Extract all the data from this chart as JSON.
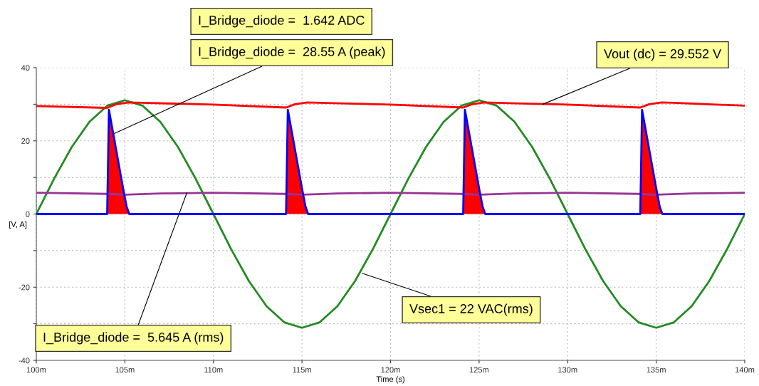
{
  "chart_data": {
    "type": "line",
    "xlabel": "Time (s)",
    "ylabel": "[V, A]",
    "xlim": [
      100,
      140
    ],
    "ylim": [
      -40,
      40
    ],
    "xticks": [
      {
        "value": 100,
        "label": "100m"
      },
      {
        "value": 105,
        "label": "105m"
      },
      {
        "value": 110,
        "label": "110m"
      },
      {
        "value": 115,
        "label": "115m"
      },
      {
        "value": 120,
        "label": "120m"
      },
      {
        "value": 125,
        "label": "125m"
      },
      {
        "value": 130,
        "label": "130m"
      },
      {
        "value": 135,
        "label": "135m"
      },
      {
        "value": 140,
        "label": "140m"
      }
    ],
    "yticks": [
      -40,
      {
        "value": -30,
        "label": null
      },
      -20,
      {
        "value": -10,
        "label": null
      },
      0,
      {
        "value": 10,
        "label": null
      },
      20,
      {
        "value": 30,
        "label": null
      },
      40
    ],
    "grid": true,
    "legend": false,
    "line_style": "solid",
    "series": [
      {
        "color": "#228b22",
        "x": [
          100,
          101,
          102,
          103,
          104,
          105,
          106,
          107,
          108,
          109,
          110,
          111,
          112,
          113,
          114,
          115,
          116,
          117,
          118,
          119,
          120,
          121,
          122,
          123,
          124,
          125,
          126,
          127,
          128,
          129,
          130,
          131,
          132,
          133,
          134,
          135,
          136,
          137,
          138,
          139,
          140
        ],
        "values": [
          0,
          9.6,
          18.3,
          25.2,
          29.6,
          31.1,
          29.6,
          25.2,
          18.3,
          9.6,
          0,
          -9.6,
          -18.3,
          -25.2,
          -29.6,
          -31.1,
          -29.6,
          -25.2,
          -18.3,
          -9.6,
          0,
          9.6,
          18.3,
          25.2,
          29.6,
          31.1,
          29.6,
          25.2,
          18.3,
          9.6,
          0,
          -9.6,
          -18.3,
          -25.2,
          -29.6,
          -31.1,
          -29.6,
          -25.2,
          -18.3,
          -9.6,
          0
        ]
      },
      {
        "color": "#ff0000",
        "x": [
          100,
          104,
          104.5,
          105.2,
          106,
          110,
          114.1,
          114.6,
          115.3,
          116,
          120,
          124.1,
          124.6,
          125.3,
          126,
          130,
          134.1,
          134.6,
          135.3,
          136,
          140
        ],
        "values": [
          29.5,
          29.0,
          30.0,
          30.5,
          30.4,
          29.9,
          29.1,
          30.0,
          30.5,
          30.4,
          29.9,
          29.1,
          30.0,
          30.5,
          30.4,
          29.9,
          29.1,
          30.0,
          30.5,
          30.4,
          29.6
        ]
      },
      {
        "color": "#993399",
        "x": [
          100,
          104,
          105,
          107,
          110,
          114,
          115,
          117,
          120,
          124,
          125,
          127,
          130,
          134,
          135,
          137,
          140
        ],
        "values": [
          5.8,
          5.5,
          5.3,
          5.6,
          5.8,
          5.5,
          5.3,
          5.6,
          5.8,
          5.5,
          5.3,
          5.6,
          5.8,
          5.5,
          5.3,
          5.6,
          5.8
        ]
      },
      {
        "type": "area",
        "color": "#ff0000",
        "x": [
          104,
          104.1,
          104.9,
          105.1,
          105.25,
          110,
          114.1,
          114.2,
          115,
          115.2,
          115.35,
          120,
          124.1,
          124.2,
          125,
          125.2,
          125.35,
          130,
          134.1,
          134.2,
          135,
          135.2,
          135.35
        ],
        "values": [
          0,
          28.5,
          7,
          2,
          0,
          null,
          0,
          28.5,
          7,
          2,
          0,
          null,
          0,
          28.5,
          7,
          2,
          0,
          null,
          0,
          28.5,
          7,
          2,
          0
        ]
      },
      {
        "color": "#0000ff",
        "x": [
          100,
          104,
          104.1,
          104.9,
          105.1,
          105.25,
          114.1,
          114.2,
          115,
          115.2,
          115.35,
          124.1,
          124.2,
          125,
          125.2,
          125.35,
          134.1,
          134.2,
          135,
          135.2,
          135.35,
          140
        ],
        "values": [
          0,
          0,
          28.5,
          7,
          2,
          0,
          0,
          28.5,
          7,
          2,
          0,
          0,
          28.5,
          7,
          2,
          0,
          0,
          28.5,
          7,
          2,
          0,
          0
        ]
      }
    ],
    "annotations": [
      "I_Bridge_diode =  1.642 ADC",
      {
        "text": "I_Bridge_diode =  28.55 A (peak)",
        "x": 104.4,
        "y": 22
      },
      {
        "text": "Vout (dc) = 29.552 V",
        "x": 128.6,
        "y": 30.0
      },
      {
        "text": "Vsec1 = 22 VAC(rms)",
        "x": 118.4,
        "y": -16.2
      },
      {
        "text": "I_Bridge_diode =  5.645 A (rms)",
        "x": 108.5,
        "y": 5.8
      }
    ]
  }
}
